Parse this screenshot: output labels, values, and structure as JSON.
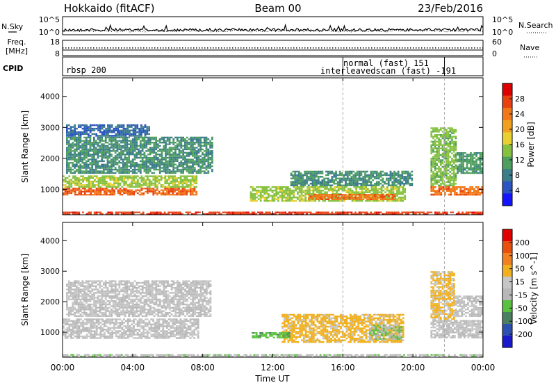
{
  "header": {
    "station": "Hokkaido (fitACF)",
    "beam": "Beam 00",
    "date": "23/Feb/2016"
  },
  "noise_panel": {
    "left_label": "N.Sky",
    "right_label": "N.Search",
    "left_ticks": [
      "10^5",
      "10^0"
    ],
    "right_ticks": [
      "10^5",
      "10^0"
    ]
  },
  "freq_panel": {
    "left_label_top": "Freq.",
    "left_label_unit": "[MHz]",
    "left_ticks": [
      "18",
      "8"
    ],
    "right_label": "Nave",
    "right_ticks": [
      "60",
      "0"
    ]
  },
  "cpid_panel": {
    "label": "CPID",
    "programs": [
      {
        "name": "rbsp 200"
      },
      {
        "name": "normal (fast) 151"
      },
      {
        "name": "interleavedscan (fast) -191"
      }
    ]
  },
  "x_axis": {
    "label": "Time UT",
    "ticks": [
      "00:00",
      "04:00",
      "08:00",
      "12:00",
      "16:00",
      "20:00",
      "00:00"
    ],
    "hours": [
      0,
      4,
      8,
      12,
      16,
      20,
      24
    ],
    "range": [
      0,
      24
    ]
  },
  "program_change_hours": [
    16.0,
    21.8
  ],
  "chart_data": [
    {
      "type": "heatmap",
      "ylabel": "Slant Range [km]",
      "ylim": [
        180,
        4600
      ],
      "yticks": [
        1000,
        2000,
        3000,
        4000
      ],
      "xlim": [
        0,
        24
      ],
      "colorbar": {
        "label": "Power [dB]",
        "ticks": [
          "4",
          "8",
          "12",
          "16",
          "20",
          "24",
          "28"
        ],
        "range": [
          0,
          30
        ],
        "colors": [
          "#1414ff",
          "#2a55c0",
          "#3c7d8a",
          "#4e9e5e",
          "#86c040",
          "#e8d030",
          "#f0a020",
          "#f07818",
          "#e84010",
          "#dd0000"
        ]
      },
      "regions": [
        {
          "t0": 0.0,
          "t1": 7.7,
          "r0": 800,
          "r1": 1050,
          "level": 24
        },
        {
          "t0": 0.0,
          "t1": 7.7,
          "r0": 1050,
          "r1": 1450,
          "level": 14
        },
        {
          "t0": 0.2,
          "t1": 8.6,
          "r0": 1500,
          "r1": 2700,
          "level": 9
        },
        {
          "t0": 0.2,
          "t1": 5.0,
          "r0": 2700,
          "r1": 3100,
          "level": 6
        },
        {
          "t0": 10.7,
          "t1": 19.6,
          "r0": 600,
          "r1": 1100,
          "level": 14
        },
        {
          "t0": 14.0,
          "t1": 19.0,
          "r0": 650,
          "r1": 850,
          "level": 23
        },
        {
          "t0": 13.0,
          "t1": 20.0,
          "r0": 1100,
          "r1": 1600,
          "level": 9
        },
        {
          "t0": 21.0,
          "t1": 24.0,
          "r0": 800,
          "r1": 1100,
          "level": 23
        },
        {
          "t0": 21.0,
          "t1": 22.5,
          "r0": 1100,
          "r1": 3000,
          "level": 13
        },
        {
          "t0": 22.5,
          "t1": 24.0,
          "r0": 1500,
          "r1": 2200,
          "level": 10
        },
        {
          "t0": 0.0,
          "t1": 24.0,
          "r0": 180,
          "r1": 280,
          "level": 26
        }
      ]
    },
    {
      "type": "heatmap",
      "ylabel": "Slant Range [km]",
      "ylim": [
        180,
        4600
      ],
      "yticks": [
        1000,
        2000,
        3000,
        4000
      ],
      "xlim": [
        0,
        24
      ],
      "colorbar": {
        "label": "Velocity [m s^-1]",
        "ticks": [
          "200",
          "100",
          "50",
          "15",
          "-15",
          "-50",
          "-100",
          "-200"
        ],
        "range": [
          -250,
          250
        ],
        "colors": [
          "#1a1acc",
          "#2e4fb0",
          "#4a8060",
          "#5ac040",
          "#b8b8b8",
          "#c6c6c6",
          "#f0b020",
          "#f08020",
          "#e85010",
          "#e00000"
        ]
      },
      "regions": [
        {
          "t0": 0.0,
          "t1": 7.8,
          "r0": 780,
          "r1": 1450,
          "level": 0
        },
        {
          "t0": 0.2,
          "t1": 8.5,
          "r0": 1500,
          "r1": 2700,
          "level": 0
        },
        {
          "t0": 12.5,
          "t1": 19.5,
          "r0": 650,
          "r1": 1600,
          "level": 70
        },
        {
          "t0": 17.5,
          "t1": 19.4,
          "r0": 750,
          "r1": 1250,
          "level": -45
        },
        {
          "t0": 10.8,
          "t1": 13.0,
          "r0": 800,
          "r1": 1000,
          "level": -80
        },
        {
          "t0": 21.0,
          "t1": 24.0,
          "r0": 800,
          "r1": 1400,
          "level": 0
        },
        {
          "t0": 21.0,
          "t1": 22.4,
          "r0": 1400,
          "r1": 3000,
          "level": 60
        },
        {
          "t0": 22.4,
          "t1": 24.0,
          "r0": 1500,
          "r1": 2200,
          "level": 0
        },
        {
          "t0": 0.0,
          "t1": 24.0,
          "r0": 180,
          "r1": 280,
          "level": -30
        }
      ]
    }
  ]
}
